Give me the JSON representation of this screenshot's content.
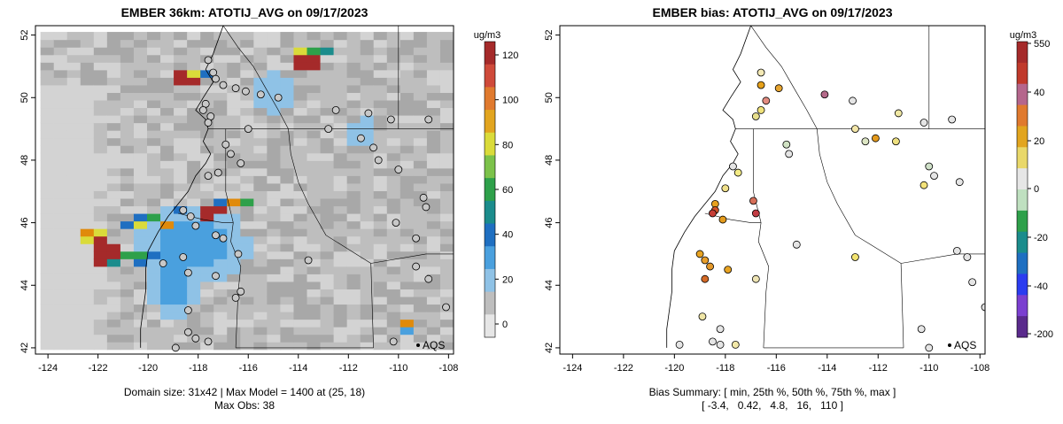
{
  "left_panel": {
    "title": "EMBER 36km: ATOTIJ_AVG on 09/17/2023",
    "caption_line1": "Domain size: 31x42 | Max Model = 1400 at (25, 18)",
    "caption_line2": "Max Obs: 38",
    "legend_unit": "ug/m3",
    "legend_ticks": [
      "0",
      "20",
      "40",
      "60",
      "80",
      "100",
      "120"
    ],
    "aqs_label": "AQS"
  },
  "right_panel": {
    "title": "EMBER bias: ATOTIJ_AVG on 09/17/2023",
    "caption_line1": "Bias Summary: [ min, 25th %, 50th %, 75th %, max ]",
    "caption_line2": "[ -3.4,   0.42,   4.8,   16,   110 ]",
    "legend_unit": "ug/m3",
    "legend_ticks": [
      "-200",
      "-40",
      "-20",
      "0",
      "20",
      "40",
      "550"
    ],
    "aqs_label": "AQS"
  },
  "axes": {
    "x_ticks": [
      "-124",
      "-122",
      "-120",
      "-118",
      "-116",
      "-114",
      "-112",
      "-110",
      "-108"
    ],
    "y_ticks": [
      "42",
      "44",
      "46",
      "48",
      "50",
      "52"
    ],
    "lon_range": [
      -124.5,
      -107.8
    ],
    "lat_range": [
      41.8,
      52.3
    ]
  },
  "colors": {
    "grid_light": "#d3d3d3",
    "grid_mid": "#bebebe",
    "grid_dark": "#a8a8a8",
    "plume_light": "#8fc2e6",
    "plume_blue": "#4aa0de",
    "plume_dark": "#1f6fc1",
    "high_red": "#a52a2a",
    "high_orange": "#e08a0b",
    "high_yellow": "#dadb3a",
    "high_green": "#2ea04a",
    "high_teal": "#1b8c8c"
  },
  "observations_left": [
    [
      -117.6,
      51.2
    ],
    [
      -117.4,
      50.8
    ],
    [
      -117.3,
      50.6
    ],
    [
      -117.0,
      50.4
    ],
    [
      -116.5,
      50.3
    ],
    [
      -116.1,
      50.2
    ],
    [
      -115.5,
      50.1
    ],
    [
      -114.8,
      50.0
    ],
    [
      -117.7,
      49.8
    ],
    [
      -117.8,
      49.6
    ],
    [
      -117.5,
      49.4
    ],
    [
      -117.6,
      49.2
    ],
    [
      -116.0,
      49.0
    ],
    [
      -112.8,
      49.0
    ],
    [
      -112.5,
      49.6
    ],
    [
      -111.2,
      49.5
    ],
    [
      -110.3,
      49.3
    ],
    [
      -108.8,
      49.3
    ],
    [
      -116.9,
      48.5
    ],
    [
      -116.7,
      48.2
    ],
    [
      -116.3,
      47.9
    ],
    [
      -111.5,
      48.7
    ],
    [
      -111.0,
      48.4
    ],
    [
      -110.8,
      48.0
    ],
    [
      -110.0,
      47.7
    ],
    [
      -109.0,
      46.8
    ],
    [
      -108.9,
      46.5
    ],
    [
      -117.2,
      47.6
    ],
    [
      -117.6,
      47.5
    ],
    [
      -118.6,
      46.4
    ],
    [
      -118.3,
      46.2
    ],
    [
      -118.1,
      45.9
    ],
    [
      -117.3,
      45.6
    ],
    [
      -117.0,
      45.5
    ],
    [
      -116.4,
      45.0
    ],
    [
      -113.6,
      44.8
    ],
    [
      -110.1,
      46.0
    ],
    [
      -109.3,
      45.5
    ],
    [
      -119.4,
      44.7
    ],
    [
      -118.6,
      44.9
    ],
    [
      -118.4,
      44.4
    ],
    [
      -117.3,
      44.3
    ],
    [
      -116.3,
      43.8
    ],
    [
      -118.4,
      43.2
    ],
    [
      -118.4,
      42.5
    ],
    [
      -118.1,
      42.3
    ],
    [
      -117.6,
      42.2
    ],
    [
      -118.9,
      42.0
    ],
    [
      -116.5,
      43.6
    ],
    [
      -109.3,
      44.6
    ],
    [
      -108.8,
      44.2
    ],
    [
      -108.1,
      43.3
    ],
    [
      -110.2,
      42.2
    ]
  ],
  "observations_right": [
    {
      "lon": -116.6,
      "lat": 50.8,
      "c": "#f3e9b5"
    },
    {
      "lon": -116.6,
      "lat": 50.4,
      "c": "#e6a11a"
    },
    {
      "lon": -115.9,
      "lat": 50.3,
      "c": "#e7a531"
    },
    {
      "lon": -114.1,
      "lat": 50.1,
      "c": "#b56a8a"
    },
    {
      "lon": -113.0,
      "lat": 49.9,
      "c": "#e5e5e5"
    },
    {
      "lon": -116.4,
      "lat": 49.9,
      "c": "#e38c80"
    },
    {
      "lon": -116.6,
      "lat": 49.6,
      "c": "#f0e27a"
    },
    {
      "lon": -116.8,
      "lat": 49.4,
      "c": "#e7df8c"
    },
    {
      "lon": -112.1,
      "lat": 48.7,
      "c": "#e49a1c"
    },
    {
      "lon": -111.3,
      "lat": 48.6,
      "c": "#eee080"
    },
    {
      "lon": -112.5,
      "lat": 48.6,
      "c": "#dde6c4"
    },
    {
      "lon": -112.9,
      "lat": 49.0,
      "c": "#f3e6a8"
    },
    {
      "lon": -111.2,
      "lat": 49.5,
      "c": "#f0e8a4"
    },
    {
      "lon": -110.2,
      "lat": 49.2,
      "c": "#e5e5e5"
    },
    {
      "lon": -109.1,
      "lat": 49.3,
      "c": "#e5e5e5"
    },
    {
      "lon": -115.6,
      "lat": 48.5,
      "c": "#d0e2c3"
    },
    {
      "lon": -115.5,
      "lat": 48.2,
      "c": "#e5e5e5"
    },
    {
      "lon": -117.7,
      "lat": 47.8,
      "c": "#e5e5e5"
    },
    {
      "lon": -117.5,
      "lat": 47.6,
      "c": "#f4ec86"
    },
    {
      "lon": -110.0,
      "lat": 47.8,
      "c": "#cfe0c8"
    },
    {
      "lon": -109.8,
      "lat": 47.5,
      "c": "#e5e5e5"
    },
    {
      "lon": -108.8,
      "lat": 47.3,
      "c": "#e5e5e5"
    },
    {
      "lon": -110.2,
      "lat": 47.2,
      "c": "#f3e27a"
    },
    {
      "lon": -118.0,
      "lat": 47.1,
      "c": "#f0e08a"
    },
    {
      "lon": -118.4,
      "lat": 46.6,
      "c": "#e7a11f"
    },
    {
      "lon": -118.4,
      "lat": 46.4,
      "c": "#d4542a"
    },
    {
      "lon": -118.5,
      "lat": 46.3,
      "c": "#c63d36"
    },
    {
      "lon": -118.1,
      "lat": 46.1,
      "c": "#e49b1d"
    },
    {
      "lon": -116.9,
      "lat": 46.7,
      "c": "#d66f59"
    },
    {
      "lon": -116.8,
      "lat": 46.3,
      "c": "#c23c44"
    },
    {
      "lon": -115.2,
      "lat": 45.3,
      "c": "#e5e5e5"
    },
    {
      "lon": -112.9,
      "lat": 44.9,
      "c": "#f2e370"
    },
    {
      "lon": -119.0,
      "lat": 45.0,
      "c": "#e8a322"
    },
    {
      "lon": -118.8,
      "lat": 44.8,
      "c": "#e79d2a"
    },
    {
      "lon": -118.6,
      "lat": 44.6,
      "c": "#e4992b"
    },
    {
      "lon": -117.9,
      "lat": 44.5,
      "c": "#e8a323"
    },
    {
      "lon": -116.8,
      "lat": 44.2,
      "c": "#eee4b4"
    },
    {
      "lon": -118.8,
      "lat": 44.2,
      "c": "#d46a27"
    },
    {
      "lon": -118.9,
      "lat": 43.0,
      "c": "#f0e6a6"
    },
    {
      "lon": -118.2,
      "lat": 42.6,
      "c": "#e5e5e5"
    },
    {
      "lon": -118.5,
      "lat": 42.2,
      "c": "#e5e5e5"
    },
    {
      "lon": -118.2,
      "lat": 42.1,
      "c": "#e5e5e5"
    },
    {
      "lon": -117.6,
      "lat": 42.1,
      "c": "#f2e8a8"
    },
    {
      "lon": -119.8,
      "lat": 42.1,
      "c": "#e5e5e5"
    },
    {
      "lon": -110.3,
      "lat": 42.6,
      "c": "#e5e5e5"
    },
    {
      "lon": -110.0,
      "lat": 42.0,
      "c": "#e5e5e5"
    },
    {
      "lon": -108.5,
      "lat": 44.9,
      "c": "#e5e5e5"
    },
    {
      "lon": -108.3,
      "lat": 44.1,
      "c": "#e5e5e5"
    },
    {
      "lon": -107.8,
      "lat": 43.3,
      "c": "#e5e5e5"
    },
    {
      "lon": -108.9,
      "lat": 45.1,
      "c": "#e5e5e5"
    }
  ]
}
